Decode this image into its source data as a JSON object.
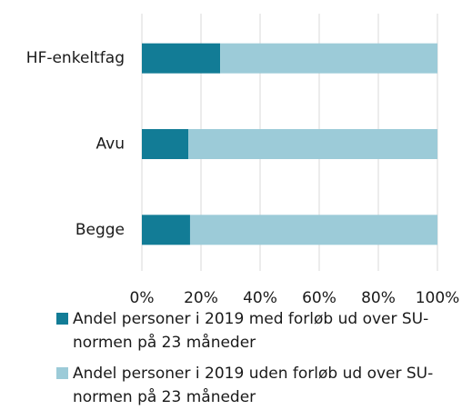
{
  "chart_data": {
    "type": "stacked_barh",
    "categories": [
      "HF-enkeltfag",
      "Avu",
      "Begge"
    ],
    "series": [
      {
        "name": "Andel personer i 2019 med forløb ud over SU-normen på 23 måneder",
        "color": "#127c96",
        "values": [
          26.5,
          15.7,
          16.3
        ]
      },
      {
        "name": "Andel personer i 2019 uden forløb ud over SU-normen på 23 måneder",
        "color": "#9ccbd8",
        "values": [
          73.5,
          84.3,
          83.7
        ]
      }
    ],
    "xlim": [
      0,
      100
    ],
    "xticks": [
      {
        "value": 0,
        "label": "0%"
      },
      {
        "value": 20,
        "label": "20%"
      },
      {
        "value": 40,
        "label": "40%"
      },
      {
        "value": 60,
        "label": "60%"
      },
      {
        "value": 80,
        "label": "80%"
      },
      {
        "value": 100,
        "label": "100%"
      }
    ],
    "grid": true
  }
}
